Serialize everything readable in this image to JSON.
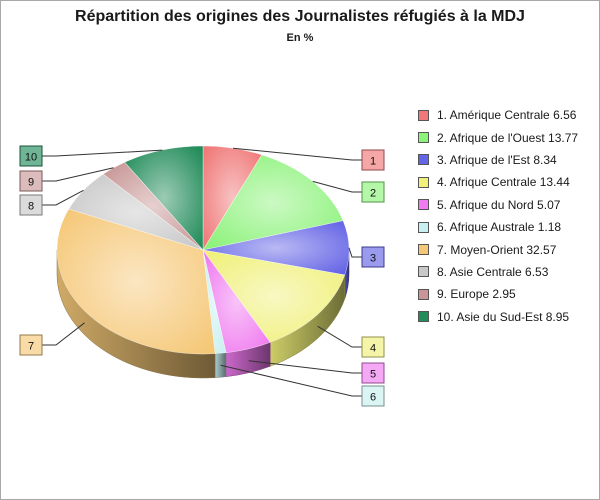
{
  "chart_data": {
    "type": "pie",
    "title": "Répartition des origines des Journalistes réfugiés à la MDJ",
    "subtitle": "En %",
    "legend_position": "right",
    "slices": [
      {
        "number": "1",
        "label": "1. Amérique Centrale 6.56",
        "value": 6.56,
        "color": "#f07878"
      },
      {
        "number": "2",
        "label": "2. Afrique de l'Ouest 13.77",
        "value": 13.77,
        "color": "#8cf27a"
      },
      {
        "number": "3",
        "label": "3. Afrique de l'Est 8.34",
        "value": 8.34,
        "color": "#6464e6"
      },
      {
        "number": "4",
        "label": "4. Afrique Centrale 13.44",
        "value": 13.44,
        "color": "#f0f07a"
      },
      {
        "number": "5",
        "label": "5. Afrique du Nord 5.07",
        "value": 5.07,
        "color": "#f07af0"
      },
      {
        "number": "6",
        "label": "6. Afrique Australe 1.18",
        "value": 1.18,
        "color": "#c8f0f0"
      },
      {
        "number": "7",
        "label": "7. Moyen-Orient 32.57",
        "value": 32.57,
        "color": "#f5c878"
      },
      {
        "number": "8",
        "label": "8. Asie Centrale 6.53",
        "value": 6.53,
        "color": "#c8c8c8"
      },
      {
        "number": "9",
        "label": "9. Europe 2.95",
        "value": 2.95,
        "color": "#c89696"
      },
      {
        "number": "10",
        "label": "10. Asie du Sud-Est 8.95",
        "value": 8.95,
        "color": "#228c5a"
      }
    ]
  }
}
